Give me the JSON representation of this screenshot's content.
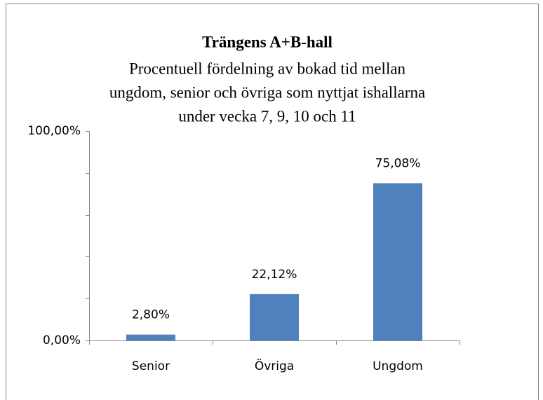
{
  "chart_data": {
    "type": "bar",
    "title": "Trängens A+B-hall",
    "subtitle": [
      "Procentuell fördelning av bokad tid mellan",
      "ungdom, senior och övriga som nyttjat ishallarna",
      "under vecka 7, 9, 10 och 11"
    ],
    "categories": [
      "Senior",
      "Övriga",
      "Ungdom"
    ],
    "values": [
      2.8,
      22.12,
      75.08
    ],
    "value_labels": [
      "2,80%",
      "22,12%",
      "75,08%"
    ],
    "color": "#4f81bd",
    "ylim": [
      0,
      100
    ],
    "yticks": [
      {
        "value": 0,
        "label": "0,00%"
      },
      {
        "value": 100,
        "label": "100,00%"
      }
    ],
    "minor_yticks": [
      20,
      40,
      60,
      80
    ],
    "grid": false
  }
}
